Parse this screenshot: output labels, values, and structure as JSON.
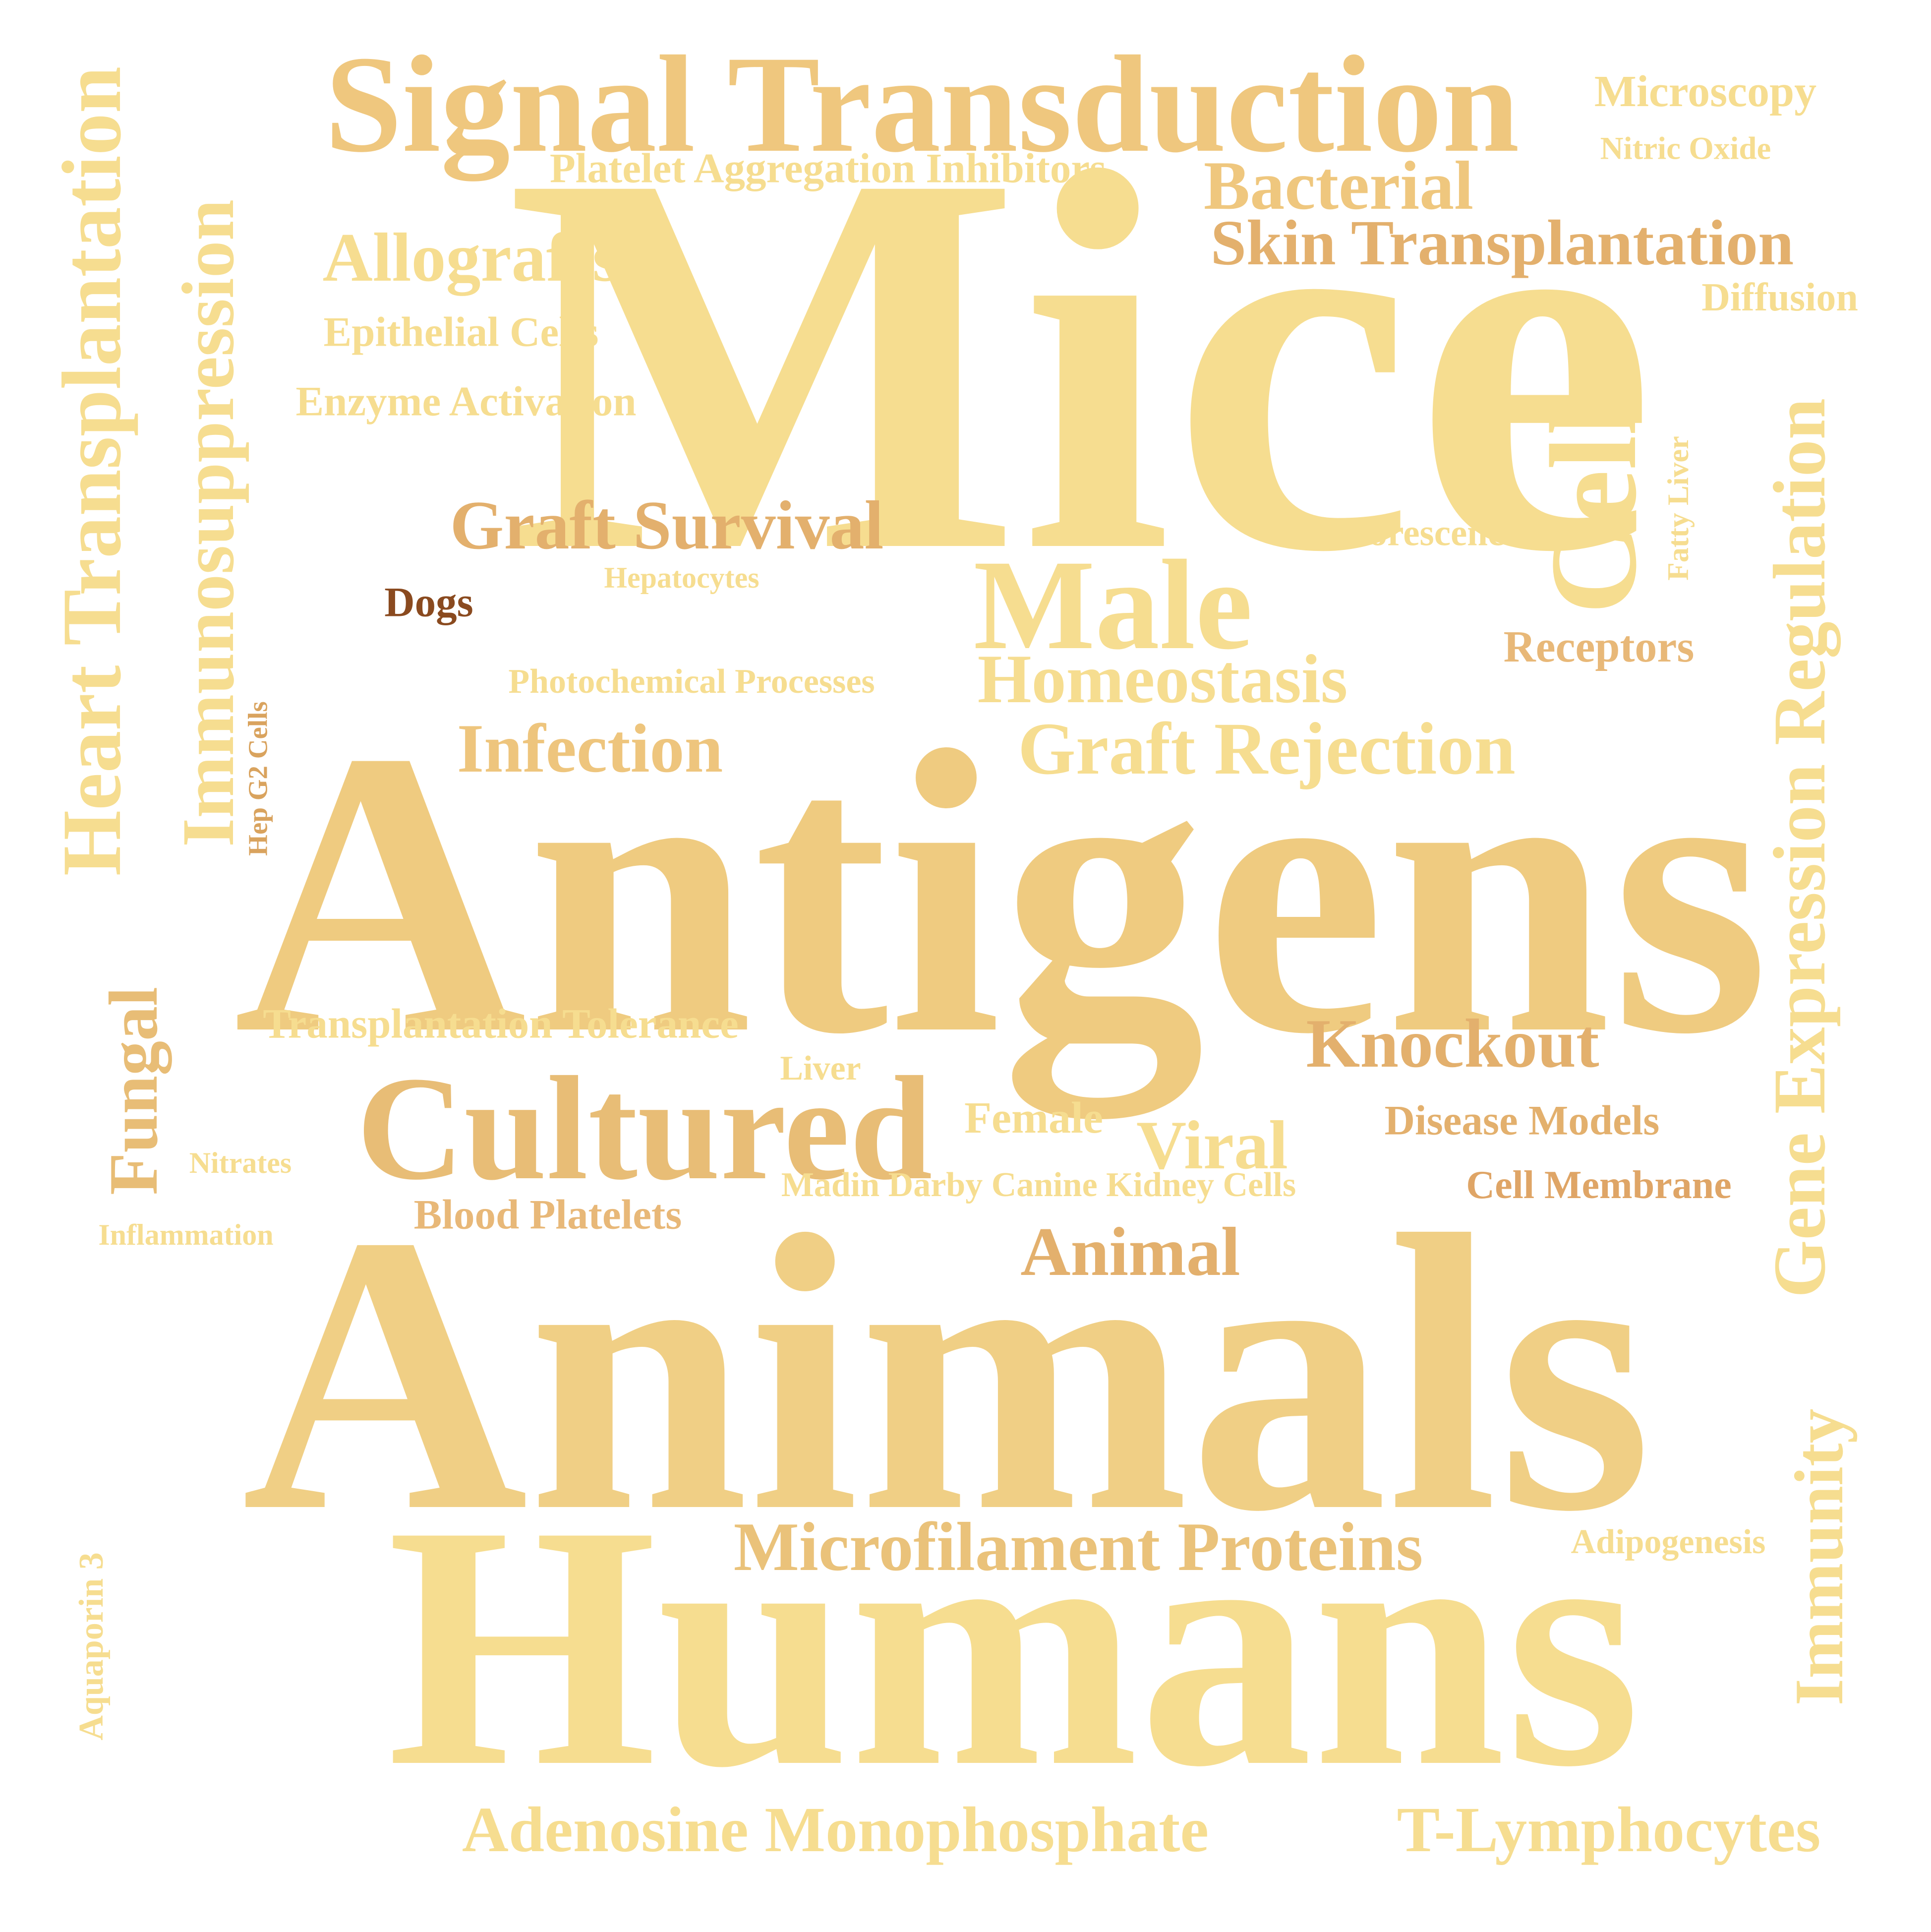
{
  "colors": {
    "background": "#ffffff",
    "light_gold": "#f6dd90",
    "gold": "#efcb80",
    "tan": "#e3b06d",
    "brown": "#8a4a1f"
  },
  "words": [
    {
      "id": "mice",
      "text": "Mice",
      "color": "#f6dd90"
    },
    {
      "id": "antigens",
      "text": "Antigens",
      "color": "#efcb80"
    },
    {
      "id": "animals",
      "text": "Animals",
      "color": "#f0cf85"
    },
    {
      "id": "humans",
      "text": "Humans",
      "color": "#f6dd90"
    },
    {
      "id": "signal-transduction",
      "text": "Signal Transduction",
      "color": "#efc77e"
    },
    {
      "id": "cultured",
      "text": "Cultured",
      "color": "#e8bd76"
    },
    {
      "id": "male",
      "text": "Male",
      "color": "#f6dd90"
    },
    {
      "id": "cells",
      "text": "Cells",
      "color": "#f6dd90"
    },
    {
      "id": "heart-transplantation",
      "text": "Heart Transplantation",
      "color": "#f6dd90"
    },
    {
      "id": "immunosuppression",
      "text": "Immunosuppression",
      "color": "#f6dd90"
    },
    {
      "id": "gene-expression-regulation",
      "text": "Gene Expression Regulation",
      "color": "#f6dd90"
    },
    {
      "id": "graft-rejection",
      "text": "Graft Rejection",
      "color": "#f6dd90"
    },
    {
      "id": "homeostasis",
      "text": "Homeostasis",
      "color": "#f6dd90"
    },
    {
      "id": "microfilament-proteins",
      "text": "Microfilament Proteins",
      "color": "#eac27a"
    },
    {
      "id": "adenosine-monophosphate",
      "text": "Adenosine Monophosphate",
      "color": "#f6dd90"
    },
    {
      "id": "t-lymphocytes",
      "text": "T-Lymphocytes",
      "color": "#f6dd90"
    },
    {
      "id": "immunity",
      "text": "Immunity",
      "color": "#f6dd90"
    },
    {
      "id": "bacterial",
      "text": "Bacterial",
      "color": "#efc77e"
    },
    {
      "id": "skin-transplantation",
      "text": "Skin Transplantation",
      "color": "#e3b06d"
    },
    {
      "id": "allografts",
      "text": "Allografts",
      "color": "#f6dd90"
    },
    {
      "id": "graft-survival",
      "text": "Graft Survival",
      "color": "#e3b06d"
    },
    {
      "id": "infection",
      "text": "Infection",
      "color": "#eec57d"
    },
    {
      "id": "knockout",
      "text": "Knockout",
      "color": "#e3b06d"
    },
    {
      "id": "viral",
      "text": "Viral",
      "color": "#f6dd90"
    },
    {
      "id": "animal",
      "text": "Animal",
      "color": "#e3b06d"
    },
    {
      "id": "fungal",
      "text": "Fungal",
      "color": "#e8bd76"
    },
    {
      "id": "microscopy",
      "text": "Microscopy",
      "color": "#f6dd90"
    },
    {
      "id": "nitric-oxide",
      "text": "Nitric Oxide",
      "color": "#f6dd90"
    },
    {
      "id": "platelet-aggregation-inhibitors",
      "text": "Platelet Aggregation Inhibitors",
      "color": "#f6dd90"
    },
    {
      "id": "diffusion",
      "text": "Diffusion",
      "color": "#f6dd90"
    },
    {
      "id": "epithelial-cells",
      "text": "Epithelial Cells",
      "color": "#f6dd90"
    },
    {
      "id": "enzyme-activation",
      "text": "Enzyme Activation",
      "color": "#f6dd90"
    },
    {
      "id": "fluorescence",
      "text": "Fluorescence",
      "color": "#f6dd90"
    },
    {
      "id": "fatty-liver",
      "text": "Fatty Liver",
      "color": "#f6dd90"
    },
    {
      "id": "hepatocytes",
      "text": "Hepatocytes",
      "color": "#f6dd90"
    },
    {
      "id": "dogs",
      "text": "Dogs",
      "color": "#8a4a1f"
    },
    {
      "id": "receptors",
      "text": "Receptors",
      "color": "#e8b878"
    },
    {
      "id": "photochemical-processes",
      "text": "Photochemical Processes",
      "color": "#f6dd90"
    },
    {
      "id": "hep-g2-cells",
      "text": "Hep G2 Cells",
      "color": "#d9a35e"
    },
    {
      "id": "transplantation-tolerance",
      "text": "Transplantation Tolerance",
      "color": "#f6dd90"
    },
    {
      "id": "liver",
      "text": "Liver",
      "color": "#f6dd90"
    },
    {
      "id": "female",
      "text": "Female",
      "color": "#f6dd90"
    },
    {
      "id": "disease-models",
      "text": "Disease Models",
      "color": "#e3b06d"
    },
    {
      "id": "nitrates",
      "text": "Nitrates",
      "color": "#f6dd90"
    },
    {
      "id": "madin-darby-canine-kidney-cells",
      "text": "Madin Darby Canine Kidney Cells",
      "color": "#f6dd90"
    },
    {
      "id": "cell-membrane",
      "text": "Cell Membrane",
      "color": "#dfa566"
    },
    {
      "id": "inflammation",
      "text": "Inflammation",
      "color": "#f6dd90"
    },
    {
      "id": "blood-platelets",
      "text": "Blood Platelets",
      "color": "#e8b878"
    },
    {
      "id": "aquaporin-3",
      "text": "Aquaporin 3",
      "color": "#f6dd90"
    },
    {
      "id": "adipogenesis",
      "text": "Adipogenesis",
      "color": "#f6dd90"
    }
  ]
}
